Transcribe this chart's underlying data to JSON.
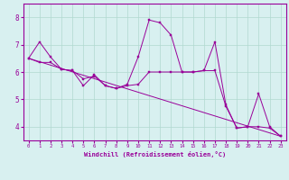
{
  "xlabel": "Windchill (Refroidissement éolien,°C)",
  "background_color": "#d8f0f0",
  "line_color": "#990099",
  "grid_color": "#b0d8d0",
  "xlim": [
    -0.5,
    23.5
  ],
  "ylim": [
    3.5,
    8.5
  ],
  "yticks": [
    4,
    5,
    6,
    7,
    8
  ],
  "xticks": [
    0,
    1,
    2,
    3,
    4,
    5,
    6,
    7,
    8,
    9,
    10,
    11,
    12,
    13,
    14,
    15,
    16,
    17,
    18,
    19,
    20,
    21,
    22,
    23
  ],
  "series1_x": [
    0,
    1,
    2,
    3,
    4,
    5,
    6,
    7,
    8,
    9,
    10,
    11,
    12,
    13,
    14,
    15,
    16,
    17,
    18,
    19,
    20,
    21,
    22,
    23
  ],
  "series1_y": [
    6.5,
    7.1,
    6.55,
    6.1,
    6.05,
    5.5,
    5.9,
    5.5,
    5.4,
    5.55,
    6.55,
    7.9,
    7.8,
    7.35,
    6.0,
    6.0,
    6.05,
    7.1,
    4.8,
    3.95,
    4.0,
    5.2,
    4.0,
    3.65
  ],
  "series2_x": [
    0,
    1,
    2,
    3,
    4,
    5,
    6,
    7,
    8,
    9,
    10,
    11,
    12,
    13,
    14,
    15,
    16,
    17,
    18,
    19,
    20,
    21,
    22,
    23
  ],
  "series2_y": [
    6.5,
    6.35,
    6.35,
    6.1,
    6.05,
    5.75,
    5.85,
    5.5,
    5.4,
    5.5,
    5.55,
    6.0,
    6.0,
    6.0,
    6.0,
    6.0,
    6.05,
    6.05,
    4.75,
    3.95,
    4.0,
    4.0,
    3.95,
    3.65
  ],
  "series3_x": [
    0,
    23
  ],
  "series3_y": [
    6.5,
    3.65
  ]
}
